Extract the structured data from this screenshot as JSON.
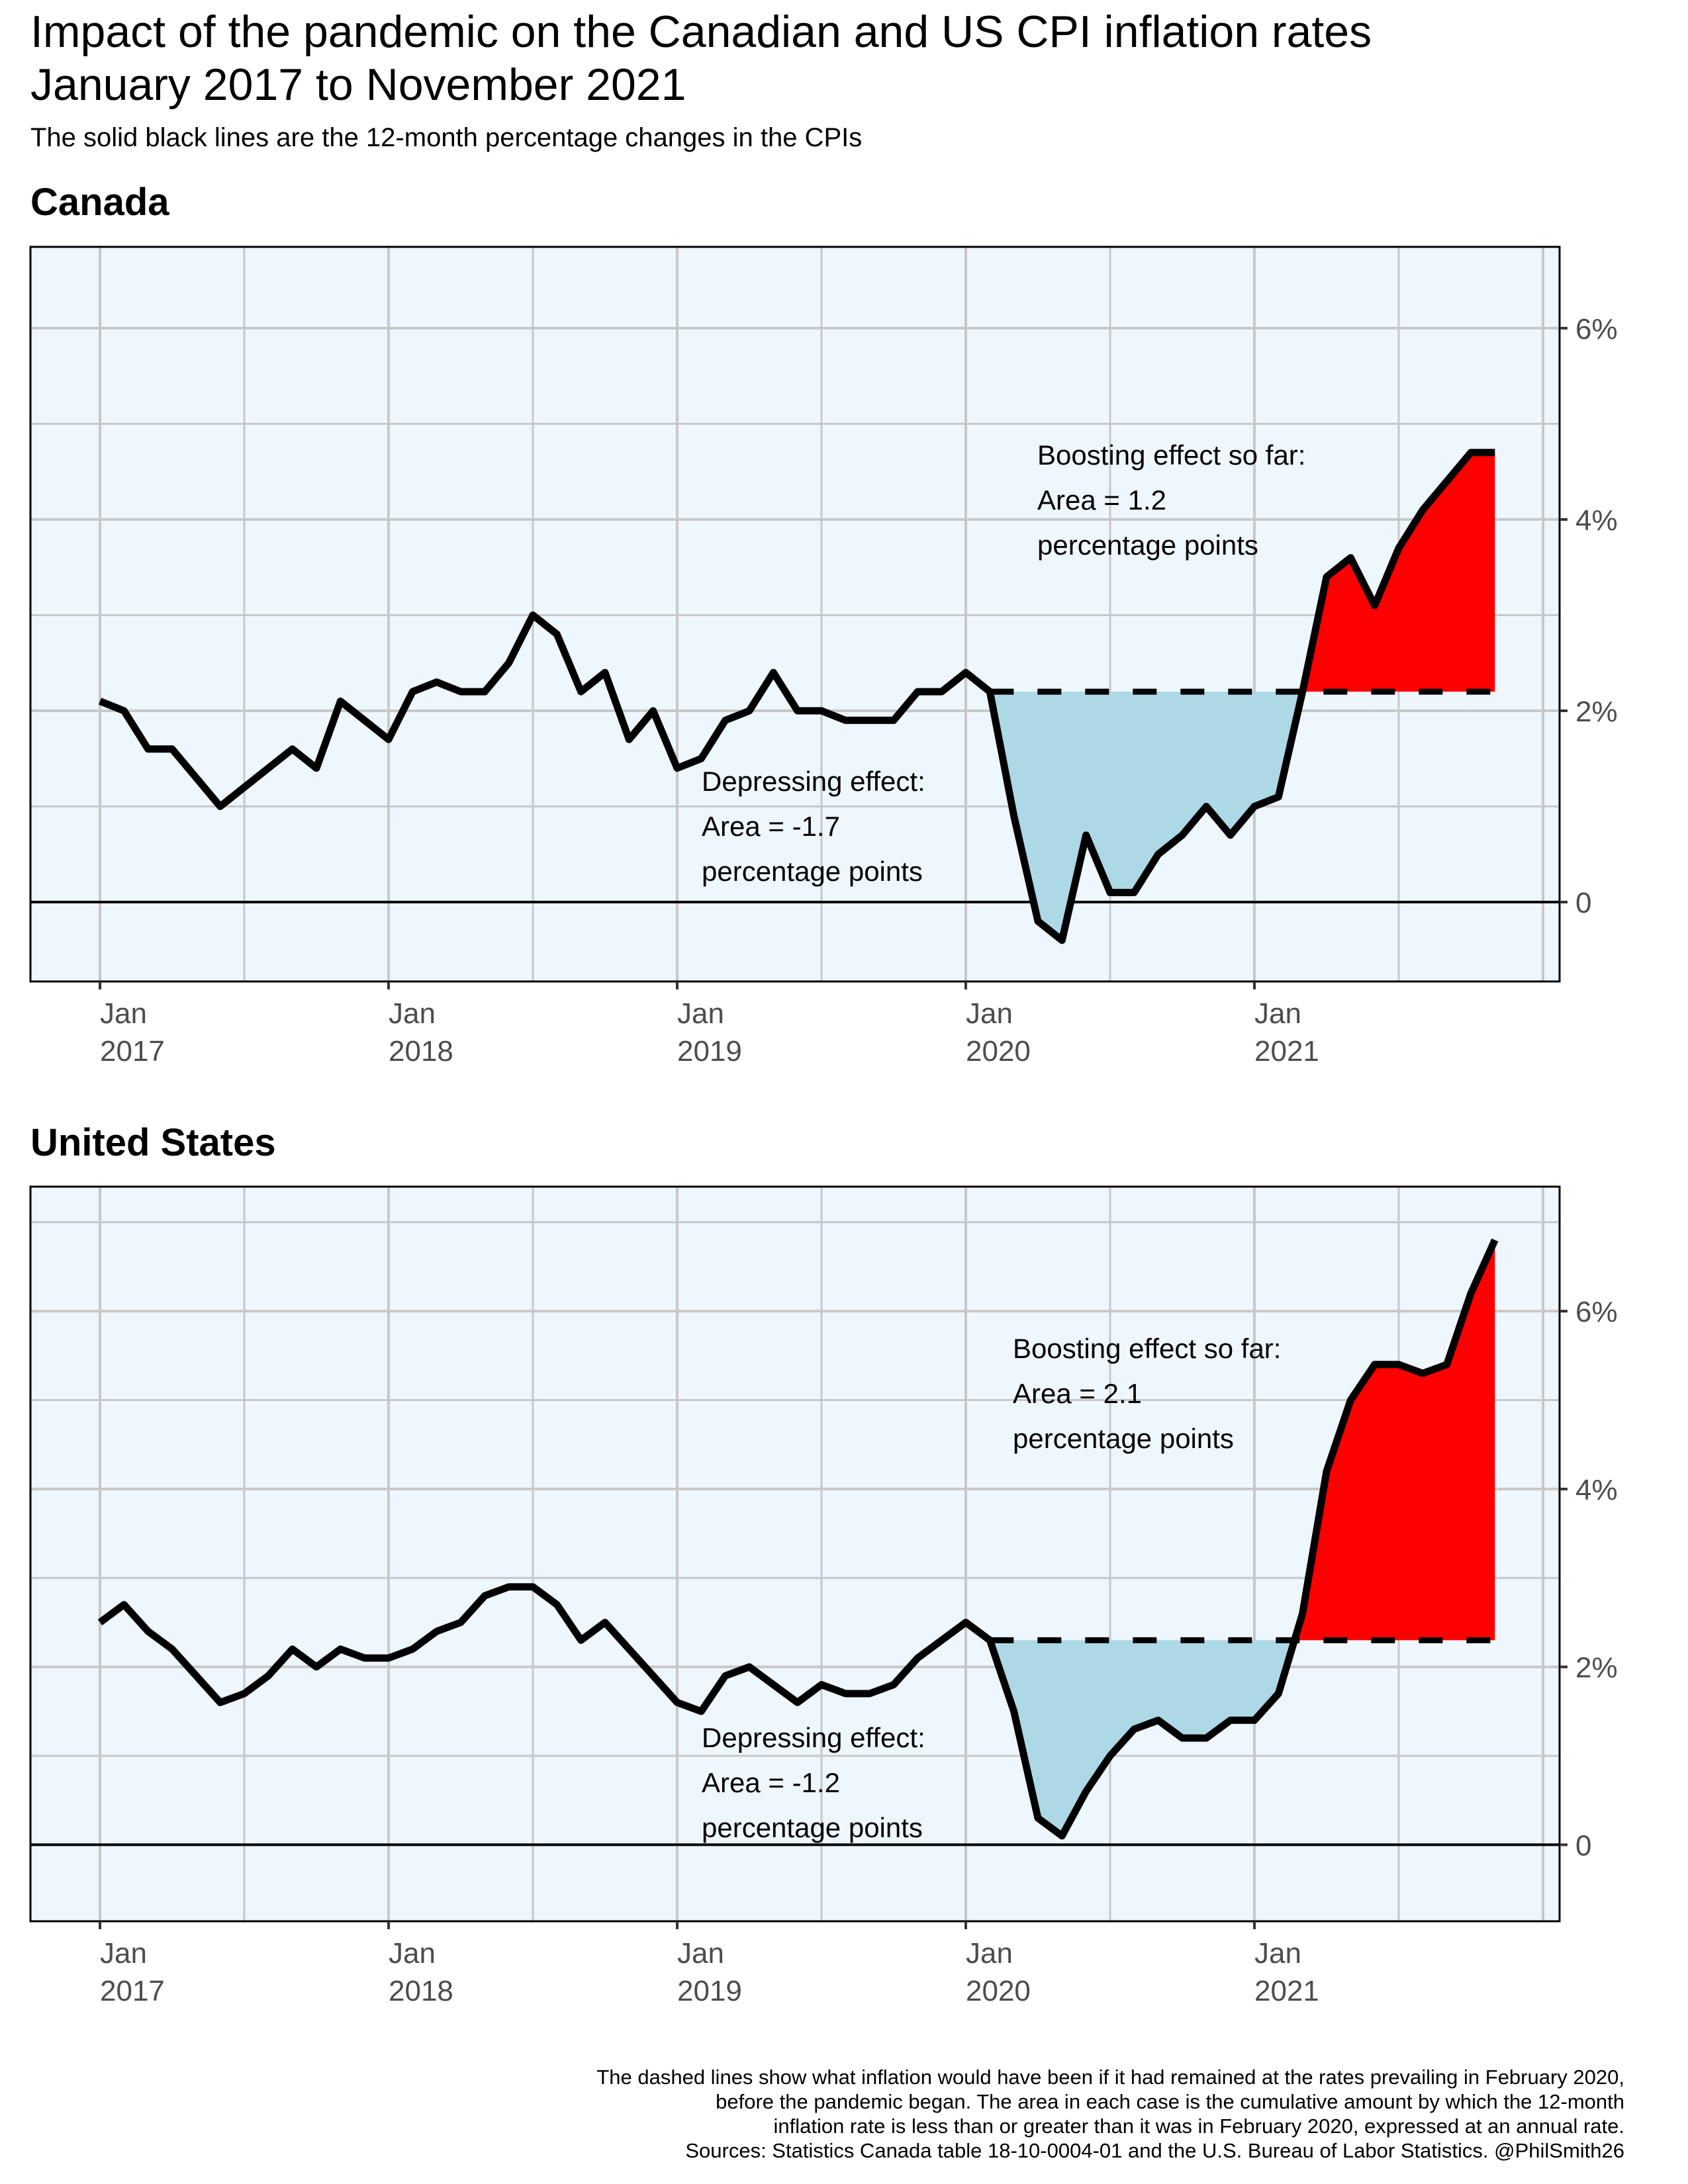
{
  "header": {
    "title_line1": "Impact of the pandemic on the Canadian and US CPI inflation rates",
    "title_line2": "January 2017 to November 2021",
    "subtitle": "The solid black lines are the 12-month percentage changes in the CPIs"
  },
  "caption": {
    "lines": [
      "The dashed lines show what inflation would have been if it had remained at the rates prevailing in February 2020,",
      "before the pandemic began. The area in each case is the cumulative amount by which the 12-month",
      "inflation rate is less than or greater than it was in February 2020, expressed at an annual rate.",
      "Sources: Statistics Canada table 18-10-0004-01 and the U.S. Bureau of Labor Statistics. @PhilSmith26"
    ]
  },
  "colors": {
    "panel_bg": "#eef6fe",
    "grid": "#c8c8c8",
    "line": "#000000",
    "depressing_fill": "#add8e6",
    "boosting_fill": "#ff0000",
    "axis_text": "#4d4d4d"
  },
  "chart_data": [
    {
      "type": "area",
      "title": "Canada",
      "xlabel": "",
      "ylabel": "",
      "x_start": "2017-01",
      "x_end": "2021-11",
      "x_ticks": [
        {
          "month_index": 0,
          "label1": "Jan",
          "label2": "2017"
        },
        {
          "month_index": 12,
          "label1": "Jan",
          "label2": "2018"
        },
        {
          "month_index": 24,
          "label1": "Jan",
          "label2": "2019"
        },
        {
          "month_index": 36,
          "label1": "Jan",
          "label2": "2020"
        },
        {
          "month_index": 48,
          "label1": "Jan",
          "label2": "2021"
        }
      ],
      "y_ticks": [
        {
          "value": 0,
          "label": "0"
        },
        {
          "value": 2,
          "label": "2%"
        },
        {
          "value": 4,
          "label": "4%"
        },
        {
          "value": 6,
          "label": "6%"
        }
      ],
      "ylim": [
        -0.83,
        6.85
      ],
      "grid": true,
      "y_axis_side": "right",
      "baseline_feb2020": 2.2,
      "baseline_start_index": 37,
      "series": [
        {
          "name": "12-month % change in CPI",
          "values": [
            2.1,
            2.0,
            1.6,
            1.6,
            1.3,
            1.0,
            1.2,
            1.4,
            1.6,
            1.4,
            2.1,
            1.9,
            1.7,
            2.2,
            2.3,
            2.2,
            2.2,
            2.5,
            3.0,
            2.8,
            2.2,
            2.4,
            1.7,
            2.0,
            1.4,
            1.5,
            1.9,
            2.0,
            2.4,
            2.0,
            2.0,
            1.9,
            1.9,
            1.9,
            2.2,
            2.2,
            2.4,
            2.2,
            0.9,
            -0.2,
            -0.4,
            0.7,
            0.1,
            0.1,
            0.5,
            0.7,
            1.0,
            0.7,
            1.0,
            1.1,
            2.2,
            3.4,
            3.6,
            3.1,
            3.7,
            4.1,
            4.4,
            4.7,
            4.7
          ]
        }
      ],
      "annotations": {
        "depressing": [
          "Depressing effect:",
          "Area = -1.7",
          "percentage points"
        ],
        "boosting": [
          "Boosting effect so far:",
          "Area = 1.2",
          "percentage points"
        ],
        "depressing_area": -1.7,
        "boosting_area": 1.2
      }
    },
    {
      "type": "area",
      "title": "United States",
      "xlabel": "",
      "ylabel": "",
      "x_start": "2017-01",
      "x_end": "2021-11",
      "x_ticks": [
        {
          "month_index": 0,
          "label1": "Jan",
          "label2": "2017"
        },
        {
          "month_index": 12,
          "label1": "Jan",
          "label2": "2018"
        },
        {
          "month_index": 24,
          "label1": "Jan",
          "label2": "2019"
        },
        {
          "month_index": 36,
          "label1": "Jan",
          "label2": "2020"
        },
        {
          "month_index": 48,
          "label1": "Jan",
          "label2": "2021"
        }
      ],
      "y_ticks": [
        {
          "value": 0,
          "label": "0"
        },
        {
          "value": 2,
          "label": "2%"
        },
        {
          "value": 4,
          "label": "4%"
        },
        {
          "value": 6,
          "label": "6%"
        }
      ],
      "ylim": [
        -0.86,
        7.4
      ],
      "grid": true,
      "y_axis_side": "right",
      "baseline_feb2020": 2.3,
      "baseline_start_index": 37,
      "series": [
        {
          "name": "12-month % change in CPI",
          "values": [
            2.5,
            2.7,
            2.4,
            2.2,
            1.9,
            1.6,
            1.7,
            1.9,
            2.2,
            2.0,
            2.2,
            2.1,
            2.1,
            2.2,
            2.4,
            2.5,
            2.8,
            2.9,
            2.9,
            2.7,
            2.3,
            2.5,
            2.2,
            1.9,
            1.6,
            1.5,
            1.9,
            2.0,
            1.8,
            1.6,
            1.8,
            1.7,
            1.7,
            1.8,
            2.1,
            2.3,
            2.5,
            2.3,
            1.5,
            0.3,
            0.1,
            0.6,
            1.0,
            1.3,
            1.4,
            1.2,
            1.2,
            1.4,
            1.4,
            1.7,
            2.6,
            4.2,
            5.0,
            5.4,
            5.4,
            5.3,
            5.4,
            6.2,
            6.8
          ]
        }
      ],
      "annotations": {
        "depressing": [
          "Depressing effect:",
          "Area = -1.2",
          "percentage points"
        ],
        "boosting": [
          "Boosting effect so far:",
          "Area = 2.1",
          "percentage points"
        ],
        "depressing_area": -1.2,
        "boosting_area": 2.1
      }
    }
  ]
}
